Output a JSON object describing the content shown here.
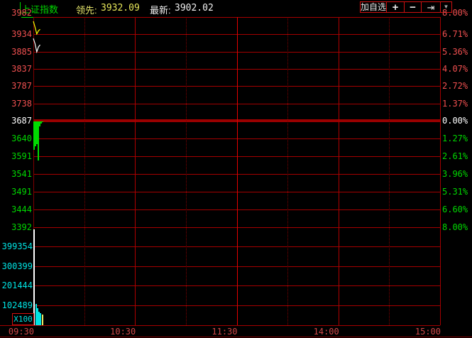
{
  "header": {
    "title": "上证指数",
    "lead_label": "领先:",
    "lead_value": "3932.09",
    "last_label": "最新:",
    "last_value": "3902.02",
    "buttons": {
      "add_watchlist": "加自选",
      "zoom_in": "+",
      "zoom_out": "−",
      "jump_latest": "⇥",
      "more": "▼"
    }
  },
  "colors": {
    "background": "#000000",
    "grid": "#A40000",
    "grid_thick": "#9A0000",
    "grid_dark": "#7E0000",
    "grid_bright": "#E60000",
    "up_text": "#F05050",
    "down_text": "#00D800",
    "flat_text": "#FFFFFF",
    "volume_text": "#00E4E4",
    "time_text": "#D04848",
    "price_line": "#FFFFFF",
    "avg_line": "#FFFF00",
    "bar_green": "#00DC00",
    "vol_white": "#FFFFFF",
    "vol_cyan": "#00E4E4",
    "vol_yellow": "#E8E862"
  },
  "chart_data": {
    "type": "line",
    "instrument": "上证指数",
    "prev_close": 3687,
    "session_minutes": 240,
    "left_axis_labels": [
      "3982",
      "3934",
      "3885",
      "3837",
      "3787",
      "3738",
      "3687",
      "3640",
      "3591",
      "3541",
      "3491",
      "3444",
      "3392"
    ],
    "right_axis_labels": [
      "8.00%",
      "6.71%",
      "5.36%",
      "4.07%",
      "2.72%",
      "1.37%",
      "0.00%",
      "1.27%",
      "2.61%",
      "3.96%",
      "5.31%",
      "6.60%",
      "8.00%"
    ],
    "price_axis_range": [
      3392,
      3982
    ],
    "series": [
      {
        "name": "lead_line",
        "color_key": "avg_line",
        "minutes": [
          0,
          1,
          2,
          3,
          4
        ],
        "values": [
          3970,
          3953,
          3934,
          3943,
          3947
        ]
      },
      {
        "name": "price_line",
        "color_key": "price_line",
        "minutes": [
          0,
          1,
          2,
          3,
          4
        ],
        "values": [
          3921,
          3906,
          3883,
          3897,
          3903
        ]
      }
    ],
    "zero_line_bars": {
      "description": "green bars hanging below previous-close line at open",
      "minutes": [
        0.4,
        1.3,
        2.1,
        2.9,
        3.8,
        4.6,
        5.4
      ],
      "low_values": [
        3606,
        3616,
        3622,
        3576,
        3671,
        3679,
        3683
      ]
    },
    "volume_panel": {
      "axis_labels": [
        "399354",
        "300399",
        "201444",
        "102489"
      ],
      "axis_values": [
        399354,
        300399,
        201444,
        102489
      ],
      "multiplier_label": "X100",
      "bars": [
        {
          "minute": 0.4,
          "value": 540000,
          "clipped": true,
          "color_key": "vol_white"
        },
        {
          "minute": 1.6,
          "value": 107000,
          "clipped": false,
          "color_key": "vol_cyan"
        },
        {
          "minute": 2.5,
          "value": 88000,
          "clipped": false,
          "color_key": "vol_cyan"
        },
        {
          "minute": 3.4,
          "value": 70000,
          "clipped": false,
          "color_key": "vol_cyan"
        },
        {
          "minute": 4.3,
          "value": 60000,
          "clipped": false,
          "color_key": "vol_cyan"
        },
        {
          "minute": 5.4,
          "value": 53000,
          "clipped": false,
          "color_key": "vol_yellow"
        }
      ]
    },
    "time_axis": {
      "labels": [
        {
          "text": "09:30",
          "minute": 0
        },
        {
          "text": "10:30",
          "minute": 60
        },
        {
          "text": "11:30",
          "minute": 120
        },
        {
          "text": "14:00",
          "minute": 180
        },
        {
          "text": "15:00",
          "minute": 240
        }
      ],
      "solid_grid_minutes": [
        60,
        120,
        180
      ],
      "dotted_grid_minutes": [
        30,
        90,
        150,
        210
      ]
    }
  }
}
